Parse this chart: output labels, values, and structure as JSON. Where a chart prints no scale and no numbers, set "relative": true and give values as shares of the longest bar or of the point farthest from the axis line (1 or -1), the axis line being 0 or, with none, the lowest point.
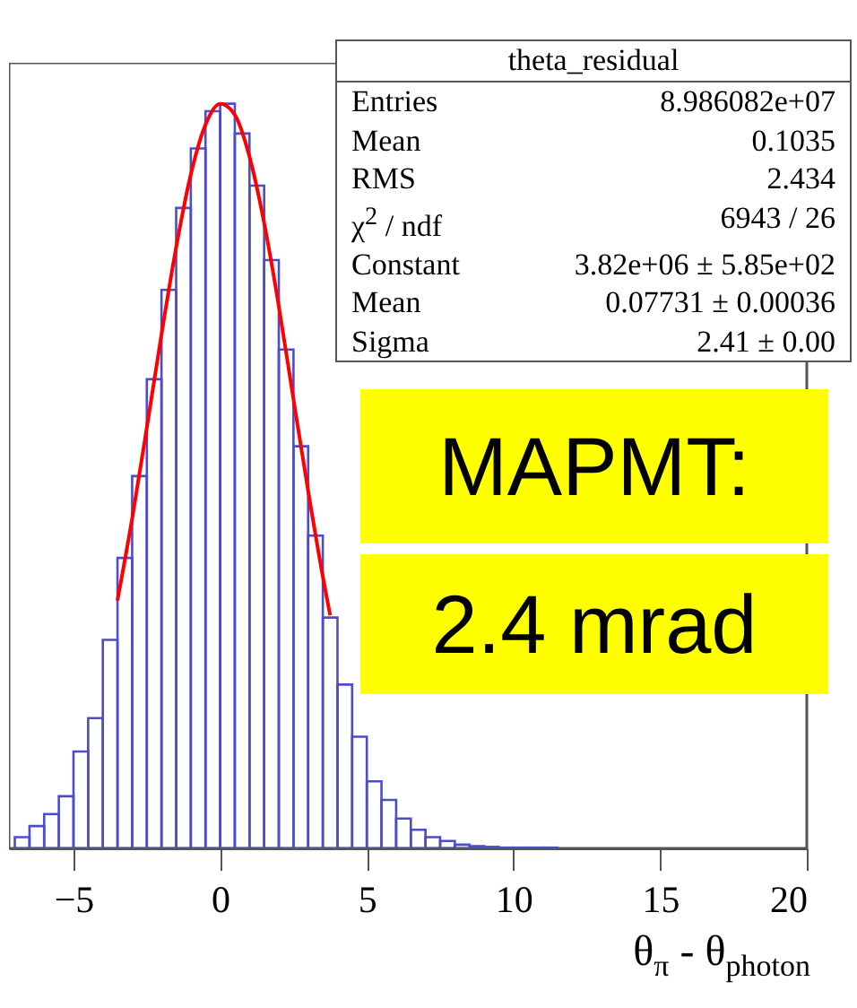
{
  "chart_data": {
    "type": "histogram",
    "relative": true,
    "xlabel": "θ$_{π}$ - θ$_{photon}$",
    "xlim": [
      -7.2,
      20
    ],
    "xticks": [
      -5,
      0,
      5,
      10,
      15,
      20
    ],
    "tick_labels": "x",
    "color": "#4d4dcc",
    "bins": [
      -7,
      -6.5,
      -6,
      -5.5,
      -5,
      -4.5,
      -4,
      -3.5,
      -3,
      -2.5,
      -2,
      -1.5,
      -1,
      -0.5,
      0,
      0.5,
      1,
      1.5,
      2,
      2.5,
      3,
      3.5,
      4,
      4.5,
      5,
      5.5,
      6,
      6.5,
      7,
      7.5,
      8,
      8.5,
      9,
      9.5,
      10,
      10.5,
      11,
      11.5
    ],
    "values": [
      0.015,
      0.03,
      0.046,
      0.07,
      0.13,
      0.175,
      0.28,
      0.39,
      0.5,
      0.63,
      0.75,
      0.86,
      0.94,
      0.99,
      1.0,
      0.96,
      0.89,
      0.79,
      0.67,
      0.54,
      0.42,
      0.31,
      0.22,
      0.15,
      0.09,
      0.065,
      0.04,
      0.025,
      0.015,
      0.01,
      0.005,
      0.003,
      0.002,
      0.001,
      0.001,
      0.001,
      0.001
    ],
    "series": [
      {
        "type": "line",
        "color": "#ff0000",
        "x": [
          -3.5,
          -3,
          -2.5,
          -2,
          -1.5,
          -1,
          -0.5,
          0,
          0.5,
          1,
          1.5,
          2,
          2.5,
          3,
          3.5,
          3.75
        ],
        "values": [
          0.333,
          0.443,
          0.565,
          0.69,
          0.807,
          0.905,
          0.972,
          1.0,
          0.985,
          0.929,
          0.84,
          0.728,
          0.603,
          0.48,
          0.365,
          0.313
        ]
      }
    ],
    "annotations": [
      "theta_residual",
      "Entries",
      "8.986082e+07",
      "Mean",
      "0.1035",
      "RMS",
      "2.434",
      "χ$^{2}$ / ndf",
      "6943 / 26",
      "Constant",
      "3.82e+06 ± 5.85e+02",
      "Mean",
      "0.07731 ± 0.00036",
      "Sigma",
      "2.41 ± 0.00",
      "MAPMT:",
      "2.4 mrad"
    ]
  }
}
